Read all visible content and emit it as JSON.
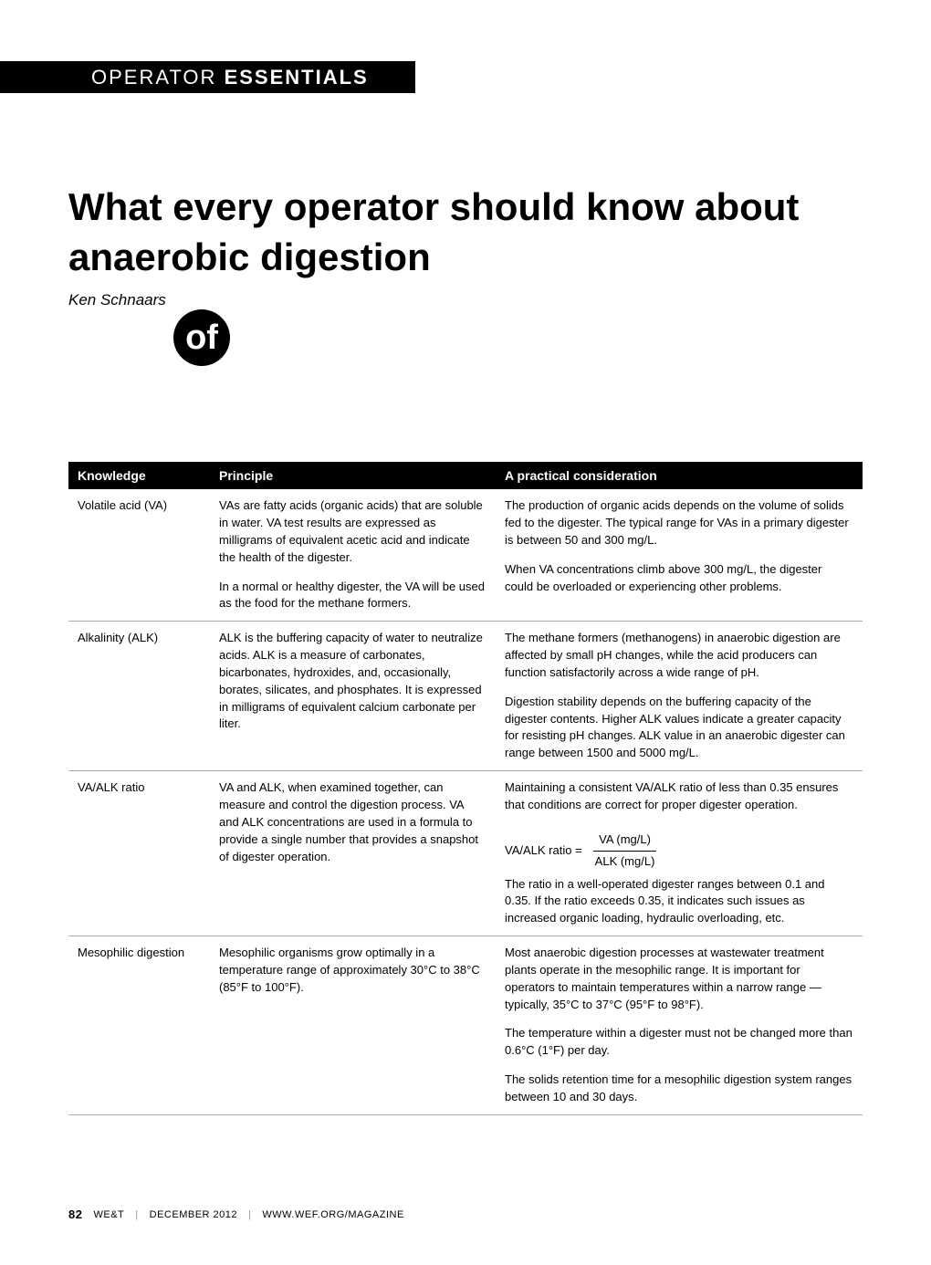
{
  "section": {
    "label_light": "OPERATOR",
    "label_bold": "ESSENTIALS"
  },
  "article": {
    "title": "What every operator should know about anaerobic digestion",
    "author": "Ken Schnaars",
    "icon_text": "of"
  },
  "table": {
    "headers": [
      "Knowledge",
      "Principle",
      "A practical consideration"
    ],
    "rows": [
      {
        "knowledge": "Volatile acid (VA)",
        "principle": [
          "VAs are fatty acids (organic acids) that are soluble in water. VA test results are expressed as milligrams of equivalent acetic acid and indicate the health of the digester.",
          "In a normal or healthy digester, the VA will be used as the food for the methane formers."
        ],
        "practical": [
          "The production of organic acids depends on the volume of solids fed to the digester. The typical range for VAs in a primary digester is between 50 and 300 mg/L.",
          "When VA concentrations climb above 300 mg/L, the digester could be overloaded or experiencing other problems."
        ]
      },
      {
        "knowledge": "Alkalinity (ALK)",
        "principle": [
          "ALK is the buffering capacity of water to neutralize acids. ALK is a measure of carbonates, bicarbonates, hydroxides, and, occasionally, borates, silicates, and phosphates. It is expressed in milligrams of equivalent calcium carbonate per liter."
        ],
        "practical": [
          "The methane formers (methanogens) in anaerobic digestion are affected by small pH changes, while the acid producers can function satisfactorily across a wide range of pH.",
          "Digestion stability depends on the buffering capacity of the digester contents. Higher ALK values indicate a greater capacity for resisting pH changes. ALK value in an anaerobic digester can range between 1500 and 5000 mg/L."
        ]
      },
      {
        "knowledge": "VA/ALK ratio",
        "principle": [
          "VA and ALK, when examined together, can measure and control the digestion process. VA and ALK concentrations are used in a formula to provide a single number that provides a snapshot of digester operation."
        ],
        "practical_pre": "Maintaining a consistent VA/ALK ratio of less than 0.35 ensures that conditions are correct for proper digester operation.",
        "formula": {
          "label": "VA/ALK ratio =",
          "numerator": "VA (mg/L)",
          "denominator": "ALK (mg/L)"
        },
        "practical_post": "The ratio in a well-operated digester ranges between 0.1 and 0.35. If the ratio exceeds 0.35, it indicates such issues as increased organic loading, hydraulic overloading, etc."
      },
      {
        "knowledge": "Mesophilic digestion",
        "principle": [
          "Mesophilic organisms grow optimally in a temperature range of approximately 30°C to 38°C (85°F to 100°F)."
        ],
        "practical": [
          "Most anaerobic digestion processes at wastewater treatment plants operate in the mesophilic range. It is important for operators to maintain temperatures within a narrow range — typically, 35°C to 37°C (95°F to 98°F).",
          "The temperature within a digester must not be changed more than 0.6°C (1°F) per day.",
          "The solids retention time for a mesophilic digestion system ranges between 10 and 30 days."
        ]
      }
    ]
  },
  "footer": {
    "page_number": "82",
    "magazine_we": "WE",
    "magazine_t": "T",
    "date": "DECEMBER 2012",
    "url": "WWW.WEF.ORG/MAGAZINE"
  },
  "colors": {
    "background": "#ffffff",
    "text": "#000000",
    "header_bg": "#000000",
    "header_text": "#ffffff",
    "border": "#aaaaaa",
    "separator": "#999999"
  },
  "typography": {
    "title_size": 42,
    "title_weight": 900,
    "author_size": 17,
    "section_label_size": 22,
    "table_header_size": 14,
    "table_body_size": 13,
    "footer_size": 11
  }
}
